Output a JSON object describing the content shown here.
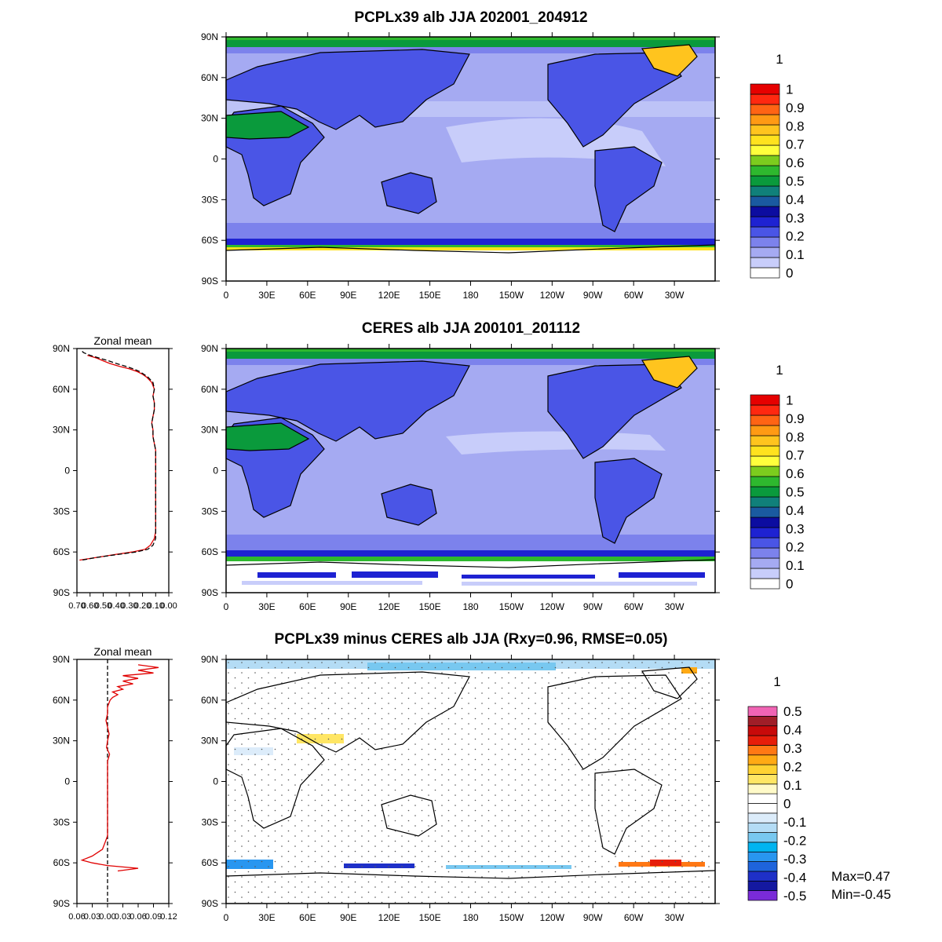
{
  "chart_data": [
    {
      "type": "heatmap",
      "title": "PCPLx39 alb JJA 202001_204912",
      "x_tick_labels": [
        "0",
        "30E",
        "60E",
        "90E",
        "120E",
        "150E",
        "180",
        "150W",
        "120W",
        "90W",
        "60W",
        "30W"
      ],
      "y_tick_labels": [
        "90N",
        "60N",
        "30N",
        "0",
        "30S",
        "60S",
        "90S"
      ],
      "colorbar": {
        "header": "1",
        "labels": [
          "1",
          "0.9",
          "0.8",
          "0.7",
          "0.6",
          "0.5",
          "0.4",
          "0.3",
          "0.2",
          "0.1",
          "0"
        ],
        "colors": [
          "#ffffff",
          "#c8cdfa",
          "#a5aaf2",
          "#7c82ec",
          "#4a55e6",
          "#1e22d2",
          "#0c0ca0",
          "#1a5aa0",
          "#10807a",
          "#0a9a3c",
          "#2eb82e",
          "#7ccc1e",
          "#ffff3c",
          "#ffe21e",
          "#ffc41e",
          "#ff9a14",
          "#ff6414",
          "#ff2810",
          "#e60000"
        ]
      }
    },
    {
      "type": "heatmap",
      "title": "CERES alb JJA 200101_201112",
      "x_tick_labels": [
        "0",
        "30E",
        "60E",
        "90E",
        "120E",
        "150E",
        "180",
        "150W",
        "120W",
        "90W",
        "60W",
        "30W"
      ],
      "y_tick_labels": [
        "90N",
        "60N",
        "30N",
        "0",
        "30S",
        "60S",
        "90S"
      ],
      "colorbar": {
        "header": "1",
        "labels": [
          "1",
          "0.9",
          "0.8",
          "0.7",
          "0.6",
          "0.5",
          "0.4",
          "0.3",
          "0.2",
          "0.1",
          "0"
        ],
        "colors": [
          "#ffffff",
          "#c8cdfa",
          "#a5aaf2",
          "#7c82ec",
          "#4a55e6",
          "#1e22d2",
          "#0c0ca0",
          "#1a5aa0",
          "#10807a",
          "#0a9a3c",
          "#2eb82e",
          "#7ccc1e",
          "#ffff3c",
          "#ffe21e",
          "#ffc41e",
          "#ff9a14",
          "#ff6414",
          "#ff2810",
          "#e60000"
        ]
      },
      "zonal_mean": {
        "title": "Zonal mean",
        "x_tick_labels": [
          "0.70",
          "0.60",
          "0.50",
          "0.40",
          "0.30",
          "0.20",
          "0.10",
          "0.00"
        ],
        "xlim": [
          0.7,
          0.0
        ],
        "y_tick_labels": [
          "90N",
          "60N",
          "30N",
          "0",
          "30S",
          "60S",
          "90S"
        ],
        "series": [
          {
            "color": "#e00000",
            "lat": [
              85,
              83,
              81,
              79,
              77,
              75,
              73,
              71,
              69,
              67,
              65,
              60,
              55,
              50,
              45,
              40,
              35,
              30,
              25,
              20,
              15,
              10,
              5,
              0,
              -5,
              -10,
              -15,
              -20,
              -25,
              -30,
              -35,
              -40,
              -45,
              -50,
              -55,
              -58,
              -60,
              -62,
              -64,
              -66
            ],
            "value": [
              0.62,
              0.55,
              0.5,
              0.45,
              0.38,
              0.3,
              0.24,
              0.2,
              0.17,
              0.15,
              0.13,
              0.11,
              0.12,
              0.11,
              0.11,
              0.12,
              0.13,
              0.12,
              0.12,
              0.11,
              0.1,
              0.1,
              0.1,
              0.1,
              0.1,
              0.1,
              0.1,
              0.1,
              0.1,
              0.1,
              0.1,
              0.1,
              0.1,
              0.11,
              0.14,
              0.18,
              0.28,
              0.42,
              0.55,
              0.68
            ]
          },
          {
            "color": "#000000",
            "dashed": true,
            "lat": [
              88,
              87,
              85,
              83,
              81,
              79,
              77,
              75,
              73,
              71,
              69,
              67,
              65,
              60,
              55,
              50,
              45,
              40,
              35,
              30,
              25,
              20,
              15,
              10,
              5,
              0,
              -5,
              -10,
              -15,
              -20,
              -25,
              -30,
              -35,
              -40,
              -45,
              -50,
              -55,
              -58,
              -60,
              -62,
              -64,
              -66
            ],
            "value": [
              0.66,
              0.65,
              0.6,
              0.53,
              0.46,
              0.4,
              0.33,
              0.27,
              0.22,
              0.19,
              0.16,
              0.14,
              0.12,
              0.11,
              0.12,
              0.11,
              0.11,
              0.12,
              0.13,
              0.12,
              0.12,
              0.11,
              0.1,
              0.1,
              0.1,
              0.1,
              0.1,
              0.1,
              0.1,
              0.1,
              0.1,
              0.1,
              0.1,
              0.1,
              0.1,
              0.1,
              0.12,
              0.16,
              0.25,
              0.4,
              0.55,
              0.66
            ]
          }
        ]
      }
    },
    {
      "type": "heatmap",
      "title": "PCPLx39 minus CERES alb JJA (Rxy=0.96, RMSE=0.05)",
      "x_tick_labels": [
        "0",
        "30E",
        "60E",
        "90E",
        "120E",
        "150E",
        "180",
        "150W",
        "120W",
        "90W",
        "60W",
        "30W"
      ],
      "y_tick_labels": [
        "90N",
        "60N",
        "30N",
        "0",
        "30S",
        "60S",
        "90S"
      ],
      "colorbar": {
        "header": "1",
        "labels": [
          "0.5",
          "0.4",
          "0.3",
          "0.2",
          "0.1",
          "0",
          "-0.1",
          "-0.2",
          "-0.3",
          "-0.4",
          "-0.5"
        ],
        "colors": [
          "#7a2bd8",
          "#1418a0",
          "#1e30c8",
          "#1e64dc",
          "#2896f0",
          "#00b4f0",
          "#78c8f0",
          "#b4dcf5",
          "#dcecfa",
          "#ffffff",
          "#ffffff",
          "#fffac8",
          "#ffe664",
          "#ffd232",
          "#ffaa14",
          "#ff7814",
          "#e61e0a",
          "#c80a0a",
          "#a01e28",
          "#f064b4"
        ]
      },
      "zonal_mean": {
        "title": "Zonal mean",
        "x_tick_labels": [
          "0.06",
          "0.03",
          "0.00",
          "0.03",
          "0.06",
          "0.09",
          "0.12"
        ],
        "xlim": [
          -0.06,
          0.12
        ],
        "y_tick_labels": [
          "90N",
          "60N",
          "30N",
          "0",
          "30S",
          "60S",
          "90S"
        ],
        "reference_line_x": 0,
        "series": [
          {
            "color": "#e00000",
            "lat": [
              86,
              84,
              82,
              80,
              78,
              76,
              74,
              72,
              70,
              68,
              66,
              64,
              62,
              60,
              55,
              50,
              45,
              40,
              35,
              30,
              25,
              20,
              15,
              10,
              5,
              0,
              -5,
              -10,
              -15,
              -20,
              -25,
              -30,
              -35,
              -40,
              -45,
              -50,
              -55,
              -58,
              -60,
              -62,
              -64,
              -66
            ],
            "value": [
              0.06,
              0.1,
              0.06,
              0.09,
              0.03,
              0.06,
              0.03,
              0.05,
              0.02,
              0.03,
              0.01,
              0.02,
              0.01,
              0.005,
              0.0,
              0.0,
              -0.003,
              0.0,
              0.003,
              0.0,
              -0.002,
              0.004,
              0.0,
              0.0,
              0.0,
              0.0,
              0.0,
              0.0,
              0.0,
              0.0,
              0.0,
              0.0,
              0.0,
              0.0,
              -0.005,
              -0.01,
              -0.03,
              -0.05,
              -0.03,
              0.0,
              0.06,
              0.02
            ]
          }
        ]
      },
      "stats": {
        "max": "Max=0.47",
        "min": "Min=-0.45"
      }
    }
  ]
}
